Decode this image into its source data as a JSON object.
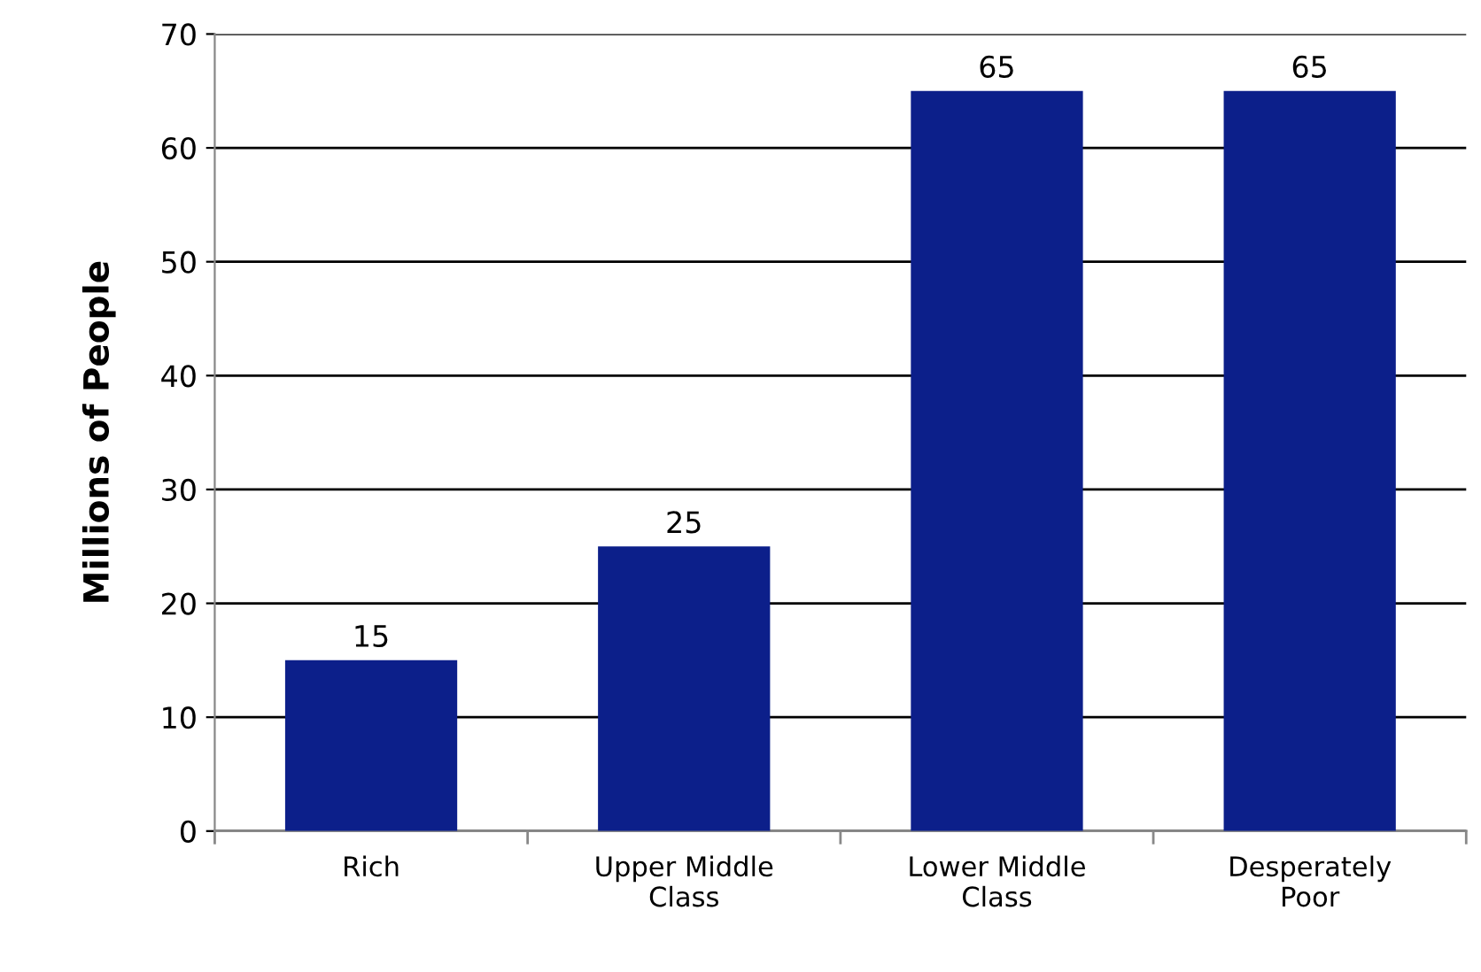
{
  "chart_data": {
    "type": "bar",
    "ylabel": "Millions of People",
    "categories": [
      "Rich",
      "Upper Middle Class",
      "Lower Middle Class",
      "Desperately Poor"
    ],
    "values": [
      15,
      25,
      65,
      65
    ],
    "color": "#0c1f8a",
    "ylim": [
      0,
      70
    ],
    "yticks": [
      0,
      10,
      20,
      30,
      40,
      50,
      60,
      70
    ],
    "grid": "y",
    "data_labels": true,
    "legend": false
  }
}
